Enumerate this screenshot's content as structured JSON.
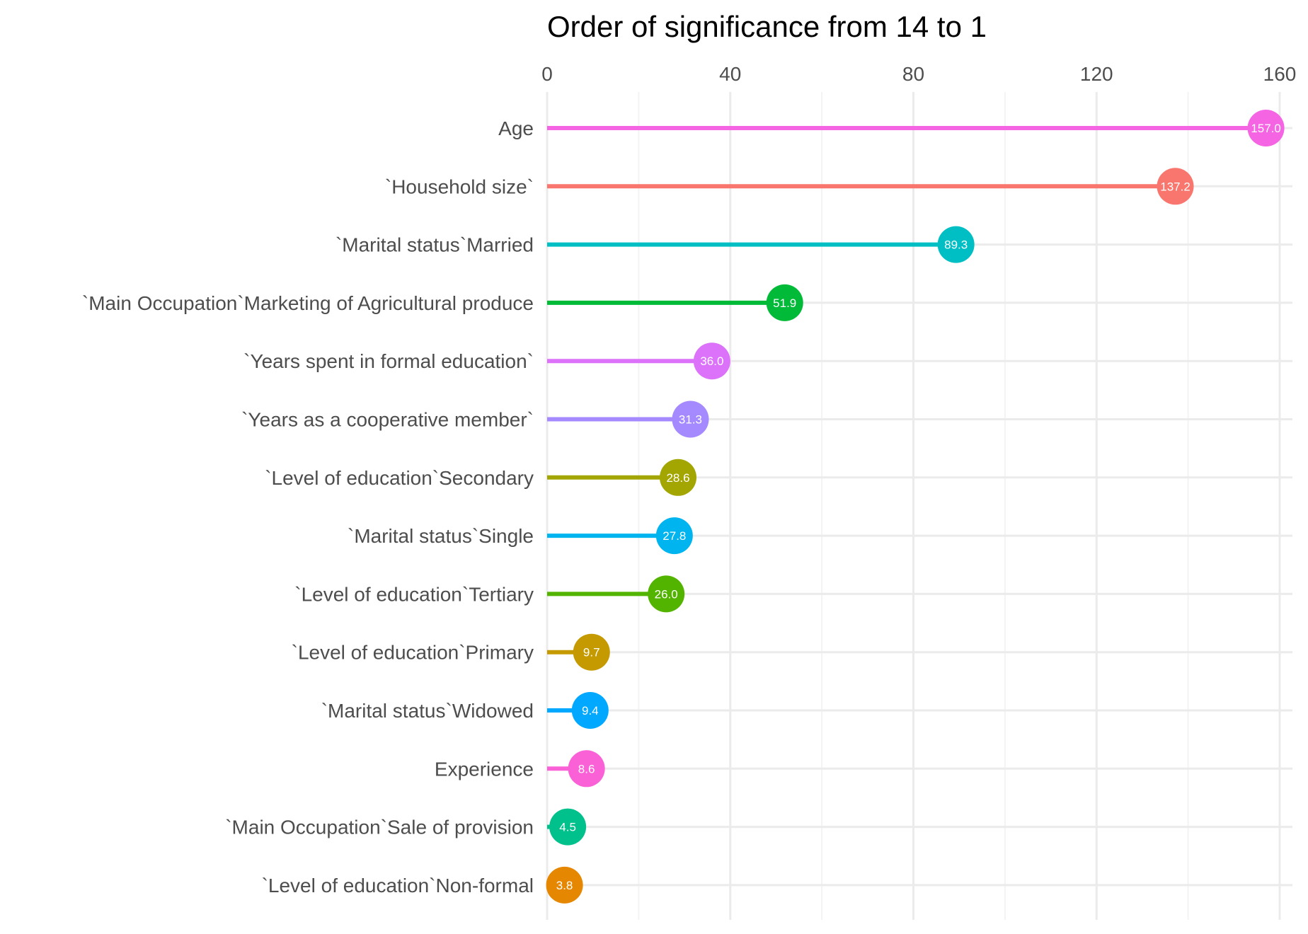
{
  "chart_data": {
    "type": "lollipop",
    "title": "Order of significance from 14 to 1",
    "xlabel": "",
    "ylabel": "",
    "xlim": [
      0,
      160
    ],
    "x_ticks": [
      0,
      40,
      80,
      120,
      160
    ],
    "x_tick_labels": [
      "0",
      "40",
      "80",
      "120",
      "160"
    ],
    "x_axis_position": "top",
    "grid": true,
    "legend": "none",
    "categories": [
      "Age",
      "`Household size`",
      "`Marital status`Married",
      "`Main Occupation`Marketing of Agricultural produce",
      "`Years spent in formal education`",
      "`Years as a cooperative member`",
      "`Level  of education`Secondary",
      "`Marital status`Single",
      "`Level  of education`Tertiary",
      "`Level  of education`Primary",
      "`Marital status`Widowed",
      "Experience",
      "`Main Occupation`Sale of provision",
      "`Level  of education`Non-formal"
    ],
    "values": [
      157.0,
      137.2,
      89.3,
      51.9,
      36.0,
      31.3,
      28.6,
      27.8,
      26.0,
      9.7,
      9.4,
      8.6,
      4.5,
      3.8
    ],
    "value_labels": [
      "157.0",
      "137.2",
      "89.3",
      "51.9",
      "36.0",
      "31.3",
      "28.6",
      "27.8",
      "26.0",
      "9.7",
      "9.4",
      "8.6",
      "4.5",
      "3.8"
    ],
    "colors": [
      "#F564E3",
      "#F8766D",
      "#00BFC4",
      "#00BA38",
      "#DC71FA",
      "#A58AFF",
      "#A3A500",
      "#00B4EF",
      "#53B400",
      "#C49A00",
      "#00A9FF",
      "#FB61D7",
      "#00C08B",
      "#E58700"
    ]
  }
}
